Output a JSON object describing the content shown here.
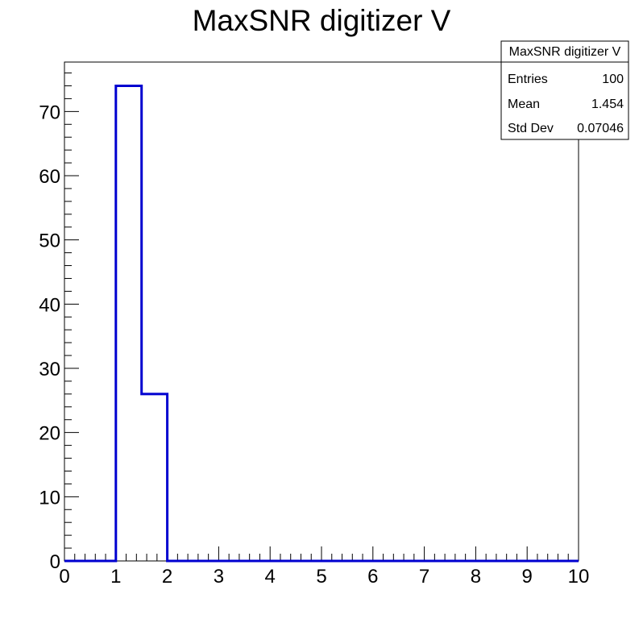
{
  "chart_data": {
    "type": "bar",
    "title": "MaxSNR digitizer V",
    "xlabel": "",
    "ylabel": "",
    "xlim": [
      0,
      10
    ],
    "ylim": [
      0,
      77.7
    ],
    "bin_width": 0.5,
    "bins": [
      {
        "x_low": 0.0,
        "x_high": 0.5,
        "count": 0
      },
      {
        "x_low": 0.5,
        "x_high": 1.0,
        "count": 0
      },
      {
        "x_low": 1.0,
        "x_high": 1.5,
        "count": 74
      },
      {
        "x_low": 1.5,
        "x_high": 2.0,
        "count": 26
      },
      {
        "x_low": 2.0,
        "x_high": 2.5,
        "count": 0
      },
      {
        "x_low": 2.5,
        "x_high": 3.0,
        "count": 0
      },
      {
        "x_low": 3.0,
        "x_high": 3.5,
        "count": 0
      },
      {
        "x_low": 3.5,
        "x_high": 4.0,
        "count": 0
      },
      {
        "x_low": 4.0,
        "x_high": 4.5,
        "count": 0
      },
      {
        "x_low": 4.5,
        "x_high": 5.0,
        "count": 0
      },
      {
        "x_low": 5.0,
        "x_high": 5.5,
        "count": 0
      },
      {
        "x_low": 5.5,
        "x_high": 6.0,
        "count": 0
      },
      {
        "x_low": 6.0,
        "x_high": 6.5,
        "count": 0
      },
      {
        "x_low": 6.5,
        "x_high": 7.0,
        "count": 0
      },
      {
        "x_low": 7.0,
        "x_high": 7.5,
        "count": 0
      },
      {
        "x_low": 7.5,
        "x_high": 8.0,
        "count": 0
      },
      {
        "x_low": 8.0,
        "x_high": 8.5,
        "count": 0
      },
      {
        "x_low": 8.5,
        "x_high": 9.0,
        "count": 0
      },
      {
        "x_low": 9.0,
        "x_high": 9.5,
        "count": 0
      },
      {
        "x_low": 9.5,
        "x_high": 10.0,
        "count": 0
      }
    ],
    "x_ticks": [
      "0",
      "1",
      "2",
      "3",
      "4",
      "5",
      "6",
      "7",
      "8",
      "9",
      "10"
    ],
    "y_ticks": [
      "0",
      "10",
      "20",
      "30",
      "40",
      "50",
      "60",
      "70"
    ],
    "line_color": "#0000d0",
    "grid": false,
    "stats_box": {
      "title": "MaxSNR digitizer V",
      "placement": "top-right",
      "rows": [
        {
          "label": "Entries",
          "value": "100"
        },
        {
          "label": "Mean",
          "value": "1.454"
        },
        {
          "label": "Std Dev",
          "value": "0.07046"
        }
      ]
    }
  }
}
